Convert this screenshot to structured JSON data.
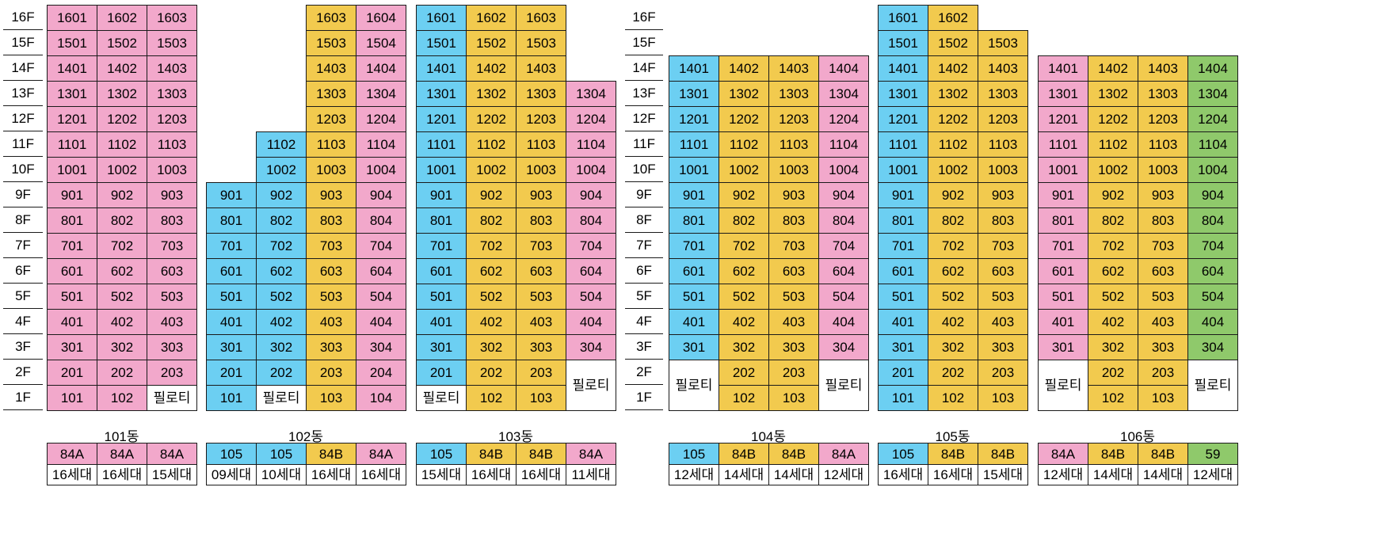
{
  "colors": {
    "pink": "#f2a8cb",
    "blue": "#6ccff2",
    "yellow": "#f2ca4e",
    "green": "#8fc96b",
    "white": "#ffffff"
  },
  "floor_labels": [
    "16F",
    "15F",
    "14F",
    "13F",
    "12F",
    "11F",
    "10F",
    "9F",
    "8F",
    "7F",
    "6F",
    "5F",
    "4F",
    "3F",
    "2F",
    "1F"
  ],
  "buildings": [
    {
      "name": "101동",
      "columns": [
        {
          "color": "pink",
          "type": "84A",
          "households": "16세대",
          "top": 16,
          "bottom": 1,
          "piloti": null
        },
        {
          "color": "pink",
          "type": "84A",
          "households": "16세대",
          "top": 16,
          "bottom": 1,
          "piloti": null
        },
        {
          "color": "pink",
          "type": "84A",
          "households": "15세대",
          "top": 16,
          "bottom": 2,
          "piloti": [
            1,
            1
          ]
        }
      ]
    },
    {
      "name": "102동",
      "columns": [
        {
          "color": "blue",
          "type": "105",
          "households": "09세대",
          "top": 9,
          "bottom": 1,
          "piloti": null
        },
        {
          "color": "blue",
          "type": "105",
          "households": "10세대",
          "top": 11,
          "bottom": 2,
          "piloti": [
            1,
            1
          ]
        },
        {
          "color": "yellow",
          "type": "84B",
          "households": "16세대",
          "top": 16,
          "bottom": 1,
          "piloti": null
        },
        {
          "color": "pink",
          "type": "84A",
          "households": "16세대",
          "top": 16,
          "bottom": 1,
          "piloti": null
        }
      ]
    },
    {
      "name": "103동",
      "columns": [
        {
          "color": "blue",
          "type": "105",
          "households": "15세대",
          "top": 16,
          "bottom": 2,
          "piloti": [
            1,
            1
          ]
        },
        {
          "color": "yellow",
          "type": "84B",
          "households": "16세대",
          "top": 16,
          "bottom": 1,
          "piloti": null
        },
        {
          "color": "yellow",
          "type": "84B",
          "households": "16세대",
          "top": 16,
          "bottom": 1,
          "piloti": null
        },
        {
          "color": "pink",
          "type": "84A",
          "households": "11세대",
          "top": 13,
          "bottom": 3,
          "piloti": [
            1,
            2
          ]
        }
      ]
    },
    {
      "name": "104동",
      "columns": [
        {
          "color": "blue",
          "type": "105",
          "households": "12세대",
          "top": 14,
          "bottom": 3,
          "piloti": [
            1,
            2
          ]
        },
        {
          "color": "yellow",
          "type": "84B",
          "households": "14세대",
          "top": 14,
          "bottom": 1,
          "piloti": null
        },
        {
          "color": "yellow",
          "type": "84B",
          "households": "14세대",
          "top": 14,
          "bottom": 1,
          "piloti": null
        },
        {
          "color": "pink",
          "type": "84A",
          "households": "12세대",
          "top": 14,
          "bottom": 3,
          "piloti": [
            1,
            2
          ]
        }
      ]
    },
    {
      "name": "105동",
      "columns": [
        {
          "color": "blue",
          "type": "105",
          "households": "16세대",
          "top": 16,
          "bottom": 1,
          "piloti": null
        },
        {
          "color": "yellow",
          "type": "84B",
          "households": "16세대",
          "top": 16,
          "bottom": 1,
          "piloti": null
        },
        {
          "color": "yellow",
          "type": "84B",
          "households": "15세대",
          "top": 15,
          "bottom": 1,
          "piloti": null
        }
      ]
    },
    {
      "name": "106동",
      "columns": [
        {
          "color": "pink",
          "type": "84A",
          "households": "12세대",
          "top": 14,
          "bottom": 3,
          "piloti": [
            1,
            2
          ]
        },
        {
          "color": "yellow",
          "type": "84B",
          "households": "14세대",
          "top": 14,
          "bottom": 1,
          "piloti": null
        },
        {
          "color": "yellow",
          "type": "84B",
          "households": "14세대",
          "top": 14,
          "bottom": 1,
          "piloti": null
        },
        {
          "color": "green",
          "type": "59",
          "households": "12세대",
          "top": 14,
          "bottom": 3,
          "piloti": [
            1,
            2
          ]
        }
      ]
    }
  ],
  "piloti_label": "필로티"
}
